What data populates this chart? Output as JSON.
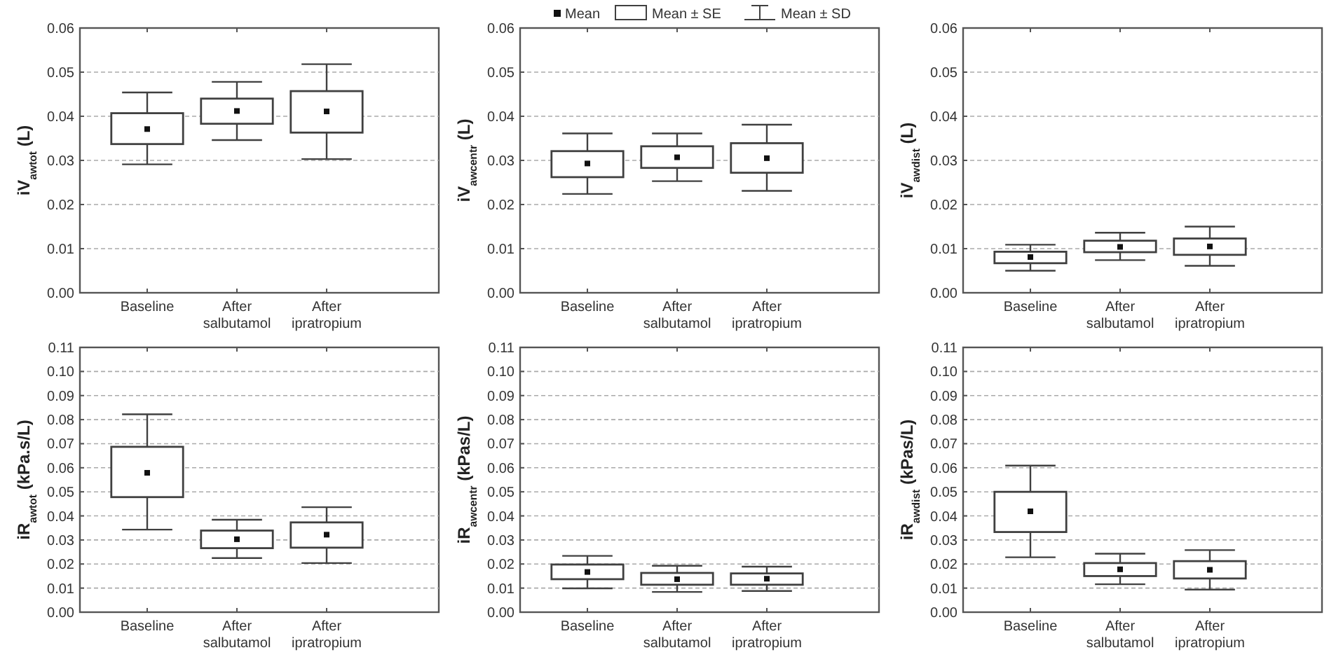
{
  "chart_data": [
    {
      "type": "box",
      "ylabel": "iV$_{awtot}$ (L)",
      "categories": [
        "Baseline",
        "After salbutamol",
        "After ipratropium"
      ],
      "color": "#404040",
      "grid": "y",
      "annotations": [
        "Mean",
        "Mean ± SE",
        "Mean ± SD"
      ],
      "ylim": [
        0,
        0.06
      ],
      "yticks": [
        {
          "value": 0,
          "label": "0.00"
        },
        {
          "value": 0.01,
          "label": "0.01"
        },
        {
          "value": 0.02,
          "label": "0.02"
        },
        {
          "value": 0.03,
          "label": "0.03"
        },
        {
          "value": 0.04,
          "label": "0.04"
        },
        {
          "value": 0.05,
          "label": "0.05"
        },
        {
          "value": 0.06,
          "label": "0.06"
        }
      ],
      "boxes": [
        {
          "low": 0.0291,
          "q1": 0.0337,
          "mean": 0.0371,
          "q3": 0.0407,
          "high": 0.0454
        },
        {
          "low": 0.0346,
          "q1": 0.0383,
          "mean": 0.0412,
          "q3": 0.044,
          "high": 0.0478
        },
        {
          "low": 0.0303,
          "q1": 0.0363,
          "mean": 0.0411,
          "q3": 0.0457,
          "high": 0.0518
        }
      ]
    },
    {
      "type": "box",
      "ylabel": "iV$_{awcentr}$ (L)",
      "categories": [
        "Baseline",
        "After salbutamol",
        "After ipratropium"
      ],
      "color": "#404040",
      "grid": "y",
      "ylim": [
        0,
        0.06
      ],
      "yticks": [
        {
          "value": 0,
          "label": "0.00"
        },
        {
          "value": 0.01,
          "label": "0.01"
        },
        {
          "value": 0.02,
          "label": "0.02"
        },
        {
          "value": 0.03,
          "label": "0.03"
        },
        {
          "value": 0.04,
          "label": "0.04"
        },
        {
          "value": 0.05,
          "label": "0.05"
        },
        {
          "value": 0.06,
          "label": "0.06"
        }
      ],
      "boxes": [
        {
          "low": 0.0224,
          "q1": 0.0262,
          "mean": 0.0293,
          "q3": 0.0321,
          "high": 0.0361
        },
        {
          "low": 0.0253,
          "q1": 0.0283,
          "mean": 0.0307,
          "q3": 0.0332,
          "high": 0.0361
        },
        {
          "low": 0.0231,
          "q1": 0.0272,
          "mean": 0.0305,
          "q3": 0.0339,
          "high": 0.0381
        }
      ]
    },
    {
      "type": "box",
      "ylabel": "iV$_{awdist}$ (L)",
      "categories": [
        "Baseline",
        "After salbutamol",
        "After ipratropium"
      ],
      "color": "#404040",
      "grid": "y",
      "ylim": [
        0,
        0.06
      ],
      "yticks": [
        {
          "value": 0,
          "label": "0.00"
        },
        {
          "value": 0.01,
          "label": "0.01"
        },
        {
          "value": 0.02,
          "label": "0.02"
        },
        {
          "value": 0.03,
          "label": "0.03"
        },
        {
          "value": 0.04,
          "label": "0.04"
        },
        {
          "value": 0.05,
          "label": "0.05"
        },
        {
          "value": 0.06,
          "label": "0.06"
        }
      ],
      "boxes": [
        {
          "low": 0.005,
          "q1": 0.0067,
          "mean": 0.0081,
          "q3": 0.0093,
          "high": 0.0109
        },
        {
          "low": 0.0074,
          "q1": 0.0092,
          "mean": 0.0104,
          "q3": 0.0118,
          "high": 0.0136
        },
        {
          "low": 0.0061,
          "q1": 0.0086,
          "mean": 0.0105,
          "q3": 0.0123,
          "high": 0.015
        }
      ]
    },
    {
      "type": "box",
      "ylabel": "iR$_{awtot}$ (kPa.s/L)",
      "categories": [
        "Baseline",
        "After salbutamol",
        "After ipratropium"
      ],
      "color": "#404040",
      "grid": "y",
      "ylim": [
        0,
        0.11
      ],
      "yticks": [
        {
          "value": 0,
          "label": "0.00"
        },
        {
          "value": 0.01,
          "label": "0.01"
        },
        {
          "value": 0.02,
          "label": "0.02"
        },
        {
          "value": 0.03,
          "label": "0.03"
        },
        {
          "value": 0.04,
          "label": "0.04"
        },
        {
          "value": 0.05,
          "label": "0.05"
        },
        {
          "value": 0.06,
          "label": "0.06"
        },
        {
          "value": 0.07,
          "label": "0.07"
        },
        {
          "value": 0.08,
          "label": "0.08"
        },
        {
          "value": 0.09,
          "label": "0.09"
        },
        {
          "value": 0.1,
          "label": "0.10"
        },
        {
          "value": 0.11,
          "label": "0.11"
        }
      ],
      "boxes": [
        {
          "low": 0.0343,
          "q1": 0.0478,
          "mean": 0.0579,
          "q3": 0.0687,
          "high": 0.0822
        },
        {
          "low": 0.0225,
          "q1": 0.0266,
          "mean": 0.0303,
          "q3": 0.0339,
          "high": 0.0384
        },
        {
          "low": 0.0204,
          "q1": 0.0268,
          "mean": 0.0322,
          "q3": 0.0373,
          "high": 0.0436
        }
      ]
    },
    {
      "type": "box",
      "ylabel": "iR$_{awcentr}$ (kPas/L)",
      "categories": [
        "Baseline",
        "After salbutamol",
        "After ipratropium"
      ],
      "color": "#404040",
      "grid": "y",
      "ylim": [
        0,
        0.11
      ],
      "yticks": [
        {
          "value": 0,
          "label": "0.00"
        },
        {
          "value": 0.01,
          "label": "0.01"
        },
        {
          "value": 0.02,
          "label": "0.02"
        },
        {
          "value": 0.03,
          "label": "0.03"
        },
        {
          "value": 0.04,
          "label": "0.04"
        },
        {
          "value": 0.05,
          "label": "0.05"
        },
        {
          "value": 0.06,
          "label": "0.06"
        },
        {
          "value": 0.07,
          "label": "0.07"
        },
        {
          "value": 0.08,
          "label": "0.08"
        },
        {
          "value": 0.09,
          "label": "0.09"
        },
        {
          "value": 0.1,
          "label": "0.10"
        },
        {
          "value": 0.11,
          "label": "0.11"
        }
      ],
      "boxes": [
        {
          "low": 0.0099,
          "q1": 0.0137,
          "mean": 0.0167,
          "q3": 0.0198,
          "high": 0.0234
        },
        {
          "low": 0.0084,
          "q1": 0.0114,
          "mean": 0.0137,
          "q3": 0.0163,
          "high": 0.0193
        },
        {
          "low": 0.0088,
          "q1": 0.0114,
          "mean": 0.0139,
          "q3": 0.0161,
          "high": 0.0189
        }
      ]
    },
    {
      "type": "box",
      "ylabel": "iR$_{awdist}$ (kPas/L)",
      "categories": [
        "Baseline",
        "After salbutamol",
        "After ipratropium"
      ],
      "color": "#404040",
      "grid": "y",
      "ylim": [
        0,
        0.11
      ],
      "yticks": [
        {
          "value": 0,
          "label": "0.00"
        },
        {
          "value": 0.01,
          "label": "0.01"
        },
        {
          "value": 0.02,
          "label": "0.02"
        },
        {
          "value": 0.03,
          "label": "0.03"
        },
        {
          "value": 0.04,
          "label": "0.04"
        },
        {
          "value": 0.05,
          "label": "0.05"
        },
        {
          "value": 0.06,
          "label": "0.06"
        },
        {
          "value": 0.07,
          "label": "0.07"
        },
        {
          "value": 0.08,
          "label": "0.08"
        },
        {
          "value": 0.09,
          "label": "0.09"
        },
        {
          "value": 0.1,
          "label": "0.10"
        },
        {
          "value": 0.11,
          "label": "0.11"
        }
      ],
      "boxes": [
        {
          "low": 0.0228,
          "q1": 0.0333,
          "mean": 0.0419,
          "q3": 0.05,
          "high": 0.0609
        },
        {
          "low": 0.0116,
          "q1": 0.015,
          "mean": 0.0178,
          "q3": 0.0204,
          "high": 0.0243
        },
        {
          "low": 0.0094,
          "q1": 0.014,
          "mean": 0.0176,
          "q3": 0.0212,
          "high": 0.0258
        }
      ]
    }
  ]
}
